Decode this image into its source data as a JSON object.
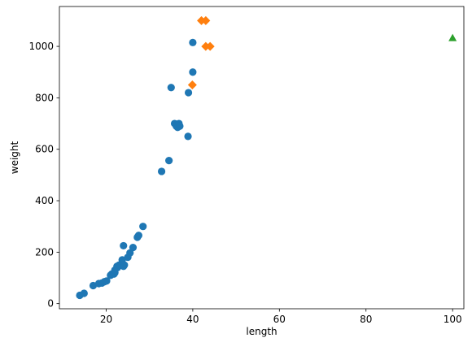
{
  "chart_data": {
    "type": "scatter",
    "xlabel": "length",
    "ylabel": "weight",
    "xlim": [
      9.2,
      102.6
    ],
    "ylim": [
      -20,
      1155
    ],
    "xticks": [
      20,
      40,
      60,
      80,
      100
    ],
    "yticks": [
      0,
      200,
      400,
      600,
      800,
      1000
    ],
    "grid": false,
    "series": [
      {
        "marker": "circle",
        "color": "#1f77b4",
        "points": [
          [
            13.9,
            32
          ],
          [
            14.9,
            40
          ],
          [
            17.0,
            70
          ],
          [
            18.3,
            78
          ],
          [
            19.0,
            80
          ],
          [
            19.6,
            85
          ],
          [
            20.1,
            88
          ],
          [
            21.0,
            110
          ],
          [
            21.3,
            115
          ],
          [
            21.8,
            115
          ],
          [
            22.0,
            120
          ],
          [
            22.0,
            130
          ],
          [
            22.5,
            145
          ],
          [
            22.6,
            140
          ],
          [
            23.0,
            150
          ],
          [
            23.5,
            150
          ],
          [
            23.7,
            170
          ],
          [
            24.0,
            145
          ],
          [
            24.0,
            225
          ],
          [
            24.2,
            150
          ],
          [
            25.0,
            180
          ],
          [
            25.5,
            197
          ],
          [
            26.2,
            218
          ],
          [
            27.2,
            258
          ],
          [
            27.5,
            265
          ],
          [
            28.5,
            300
          ],
          [
            32.8,
            514
          ],
          [
            34.5,
            556
          ],
          [
            35.0,
            840
          ],
          [
            35.8,
            700
          ],
          [
            36.2,
            690
          ],
          [
            36.5,
            685
          ],
          [
            36.8,
            700
          ],
          [
            37.0,
            690
          ],
          [
            38.9,
            650
          ],
          [
            39.0,
            820
          ],
          [
            40.0,
            1015
          ],
          [
            40.0,
            900
          ]
        ]
      },
      {
        "marker": "diamond",
        "color": "#ff7f0e",
        "points": [
          [
            39.9,
            850
          ],
          [
            42.0,
            1100
          ],
          [
            43.0,
            1100
          ],
          [
            43.0,
            1000
          ],
          [
            44.0,
            1000
          ]
        ]
      },
      {
        "marker": "triangle",
        "color": "#2ca02c",
        "points": [
          [
            100,
            1033
          ]
        ]
      }
    ]
  }
}
